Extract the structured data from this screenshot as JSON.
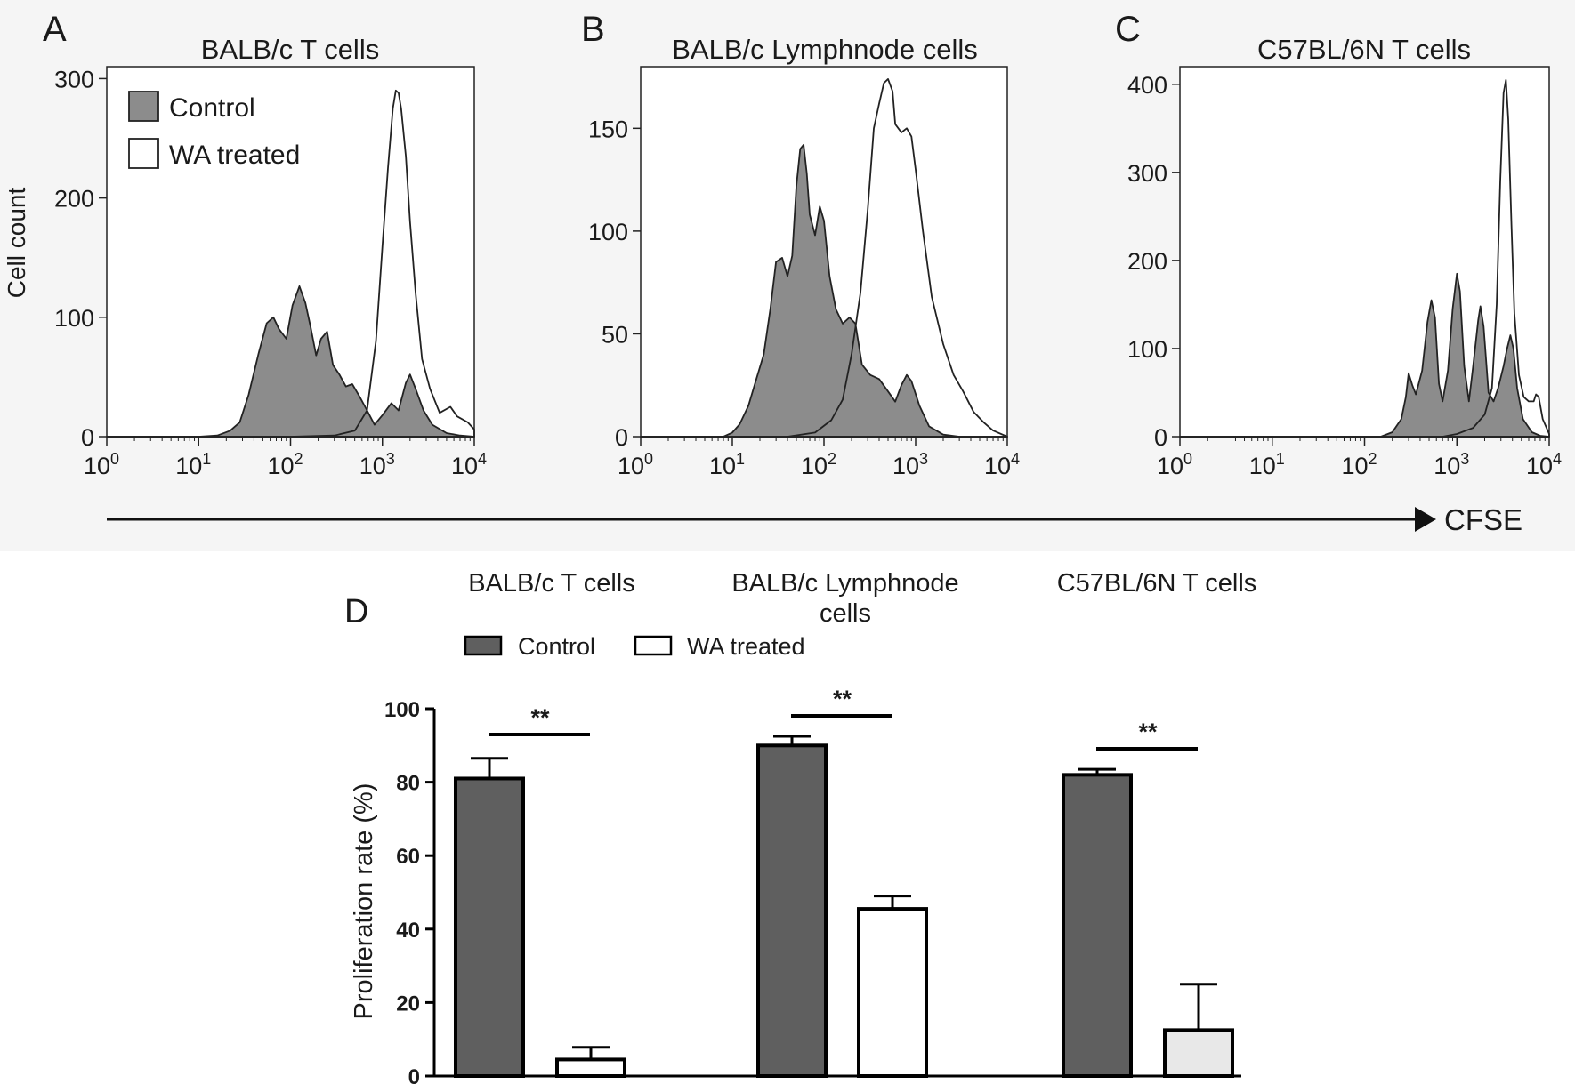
{
  "colors": {
    "control_fill": "#8c8c8c",
    "control_bar": "#5f5f5f",
    "treated_fill": "#ffffff",
    "treated_bar_c": "#e8e8e8",
    "line": "#222222",
    "panel_bg": "#f5f5f5"
  },
  "cfse_label": "CFSE",
  "chart_data": [
    {
      "panel": "A",
      "type": "area",
      "title": "BALB/c T cells",
      "xlabel": "",
      "ylabel": "Cell count",
      "xscale": "log",
      "xlim": [
        1,
        10000
      ],
      "ylim": [
        0,
        310
      ],
      "yticks": [
        0,
        100,
        200,
        300
      ],
      "xticks": [
        1,
        10,
        100,
        1000,
        10000
      ],
      "xtick_labels": [
        [
          "10",
          "0"
        ],
        [
          "10",
          "1"
        ],
        [
          "10",
          "2"
        ],
        [
          "10",
          "3"
        ],
        [
          "10",
          "4"
        ]
      ],
      "legend": {
        "position": "top-left",
        "entries": [
          "Control",
          "WA treated"
        ]
      },
      "series": [
        {
          "name": "Control",
          "fill": "gray",
          "points": [
            [
              1,
              0
            ],
            [
              10,
              0
            ],
            [
              16,
              1
            ],
            [
              22,
              5
            ],
            [
              28,
              12
            ],
            [
              35,
              35
            ],
            [
              45,
              70
            ],
            [
              55,
              95
            ],
            [
              65,
              100
            ],
            [
              75,
              90
            ],
            [
              90,
              82
            ],
            [
              105,
              110
            ],
            [
              125,
              126
            ],
            [
              145,
              112
            ],
            [
              165,
              92
            ],
            [
              190,
              68
            ],
            [
              215,
              82
            ],
            [
              250,
              88
            ],
            [
              290,
              60
            ],
            [
              340,
              52
            ],
            [
              400,
              42
            ],
            [
              470,
              44
            ],
            [
              560,
              34
            ],
            [
              680,
              22
            ],
            [
              820,
              10
            ],
            [
              1000,
              18
            ],
            [
              1250,
              28
            ],
            [
              1500,
              22
            ],
            [
              1800,
              45
            ],
            [
              2000,
              52
            ],
            [
              2300,
              40
            ],
            [
              2800,
              22
            ],
            [
              3500,
              10
            ],
            [
              5000,
              3
            ],
            [
              7000,
              1
            ],
            [
              10000,
              0
            ]
          ]
        },
        {
          "name": "WA treated",
          "fill": "white",
          "points": [
            [
              1,
              0
            ],
            [
              100,
              0
            ],
            [
              300,
              1
            ],
            [
              500,
              5
            ],
            [
              680,
              22
            ],
            [
              850,
              80
            ],
            [
              1000,
              160
            ],
            [
              1150,
              225
            ],
            [
              1300,
              275
            ],
            [
              1400,
              290
            ],
            [
              1500,
              288
            ],
            [
              1600,
              275
            ],
            [
              1800,
              235
            ],
            [
              2000,
              180
            ],
            [
              2300,
              120
            ],
            [
              2700,
              65
            ],
            [
              3300,
              40
            ],
            [
              4200,
              20
            ],
            [
              5500,
              25
            ],
            [
              6500,
              17
            ],
            [
              8500,
              12
            ],
            [
              10000,
              6
            ]
          ]
        }
      ]
    },
    {
      "panel": "B",
      "type": "area",
      "title": "BALB/c Lymphnode cells",
      "xlabel": "",
      "ylabel": "",
      "xscale": "log",
      "xlim": [
        1,
        10000
      ],
      "ylim": [
        0,
        180
      ],
      "yticks": [
        0,
        50,
        100,
        150
      ],
      "xticks": [
        1,
        10,
        100,
        1000,
        10000
      ],
      "xtick_labels": [
        [
          "10",
          "0"
        ],
        [
          "10",
          "1"
        ],
        [
          "10",
          "2"
        ],
        [
          "10",
          "3"
        ],
        [
          "10",
          "4"
        ]
      ],
      "series": [
        {
          "name": "Control",
          "fill": "gray",
          "points": [
            [
              1,
              0
            ],
            [
              8,
              0
            ],
            [
              10,
              2
            ],
            [
              12,
              6
            ],
            [
              15,
              15
            ],
            [
              18,
              27
            ],
            [
              22,
              40
            ],
            [
              26,
              62
            ],
            [
              30,
              85
            ],
            [
              35,
              87
            ],
            [
              40,
              78
            ],
            [
              45,
              88
            ],
            [
              50,
              122
            ],
            [
              55,
              140
            ],
            [
              60,
              142
            ],
            [
              65,
              128
            ],
            [
              70,
              108
            ],
            [
              80,
              98
            ],
            [
              90,
              112
            ],
            [
              100,
              105
            ],
            [
              115,
              78
            ],
            [
              135,
              62
            ],
            [
              160,
              55
            ],
            [
              190,
              58
            ],
            [
              220,
              55
            ],
            [
              260,
              35
            ],
            [
              320,
              30
            ],
            [
              400,
              28
            ],
            [
              500,
              22
            ],
            [
              600,
              17
            ],
            [
              700,
              25
            ],
            [
              800,
              30
            ],
            [
              900,
              27
            ],
            [
              1100,
              15
            ],
            [
              1400,
              5
            ],
            [
              2000,
              1
            ],
            [
              3000,
              0
            ],
            [
              10000,
              0
            ]
          ]
        },
        {
          "name": "WA treated",
          "fill": "white",
          "points": [
            [
              1,
              0
            ],
            [
              40,
              0
            ],
            [
              80,
              2
            ],
            [
              120,
              8
            ],
            [
              160,
              18
            ],
            [
              200,
              40
            ],
            [
              250,
              70
            ],
            [
              300,
              110
            ],
            [
              350,
              150
            ],
            [
              400,
              162
            ],
            [
              450,
              172
            ],
            [
              500,
              174
            ],
            [
              560,
              168
            ],
            [
              600,
              152
            ],
            [
              700,
              148
            ],
            [
              800,
              150
            ],
            [
              900,
              146
            ],
            [
              1000,
              130
            ],
            [
              1200,
              100
            ],
            [
              1500,
              68
            ],
            [
              2000,
              45
            ],
            [
              2600,
              30
            ],
            [
              3300,
              22
            ],
            [
              4300,
              12
            ],
            [
              5500,
              7
            ],
            [
              7000,
              3
            ],
            [
              10000,
              0
            ]
          ]
        }
      ]
    },
    {
      "panel": "C",
      "type": "area",
      "title": "C57BL/6N T cells",
      "xlabel": "",
      "ylabel": "",
      "xscale": "log",
      "xlim": [
        1,
        10000
      ],
      "ylim": [
        0,
        420
      ],
      "yticks": [
        0,
        100,
        200,
        300,
        400
      ],
      "xticks": [
        1,
        10,
        100,
        1000,
        10000
      ],
      "xtick_labels": [
        [
          "10",
          "0"
        ],
        [
          "10",
          "1"
        ],
        [
          "10",
          "2"
        ],
        [
          "10",
          "3"
        ],
        [
          "10",
          "4"
        ]
      ],
      "series": [
        {
          "name": "Control",
          "fill": "gray",
          "points": [
            [
              1,
              0
            ],
            [
              150,
              0
            ],
            [
              200,
              5
            ],
            [
              250,
              20
            ],
            [
              280,
              45
            ],
            [
              300,
              72
            ],
            [
              330,
              58
            ],
            [
              360,
              48
            ],
            [
              420,
              75
            ],
            [
              480,
              130
            ],
            [
              530,
              155
            ],
            [
              580,
              135
            ],
            [
              640,
              60
            ],
            [
              700,
              40
            ],
            [
              800,
              75
            ],
            [
              900,
              145
            ],
            [
              1000,
              185
            ],
            [
              1080,
              165
            ],
            [
              1200,
              80
            ],
            [
              1350,
              40
            ],
            [
              1500,
              80
            ],
            [
              1700,
              132
            ],
            [
              1800,
              148
            ],
            [
              1950,
              125
            ],
            [
              2200,
              50
            ],
            [
              2500,
              40
            ],
            [
              2800,
              55
            ],
            [
              3200,
              80
            ],
            [
              3500,
              100
            ],
            [
              3800,
              115
            ],
            [
              4100,
              100
            ],
            [
              4500,
              55
            ],
            [
              5200,
              20
            ],
            [
              6500,
              5
            ],
            [
              8000,
              1
            ],
            [
              10000,
              0
            ]
          ]
        },
        {
          "name": "WA treated",
          "fill": "white",
          "points": [
            [
              1,
              0
            ],
            [
              700,
              0
            ],
            [
              1000,
              3
            ],
            [
              1500,
              10
            ],
            [
              2000,
              25
            ],
            [
              2400,
              55
            ],
            [
              2700,
              150
            ],
            [
              2950,
              290
            ],
            [
              3200,
              390
            ],
            [
              3400,
              405
            ],
            [
              3600,
              360
            ],
            [
              3900,
              240
            ],
            [
              4200,
              140
            ],
            [
              4700,
              70
            ],
            [
              5300,
              45
            ],
            [
              6000,
              40
            ],
            [
              6800,
              40
            ],
            [
              7200,
              48
            ],
            [
              7700,
              45
            ],
            [
              8500,
              20
            ],
            [
              10000,
              3
            ]
          ]
        }
      ]
    },
    {
      "panel": "D",
      "type": "bar",
      "titles": [
        "BALB/c T cells",
        "BALB/c Lymphnode cells",
        "C57BL/6N T cells"
      ],
      "categories": [
        "BALB/c T cells",
        "BALB/c Lymphnode cells",
        "C57BL/6N T cells"
      ],
      "xlabel": "",
      "ylabel": "Proliferation rate (%)",
      "ylim": [
        0,
        100
      ],
      "yticks": [
        0,
        20,
        40,
        60,
        80,
        100
      ],
      "legend": {
        "position": "top",
        "entries": [
          "Control",
          "WA treated"
        ]
      },
      "series": [
        {
          "name": "Control",
          "values": [
            81,
            90,
            82
          ],
          "errors": [
            5.5,
            2.5,
            1.5
          ]
        },
        {
          "name": "WA treated",
          "values": [
            4.5,
            45.5,
            12.5
          ],
          "errors": [
            3.3,
            3.5,
            12.5
          ]
        }
      ],
      "significance": [
        "**",
        "**",
        "**"
      ]
    }
  ]
}
